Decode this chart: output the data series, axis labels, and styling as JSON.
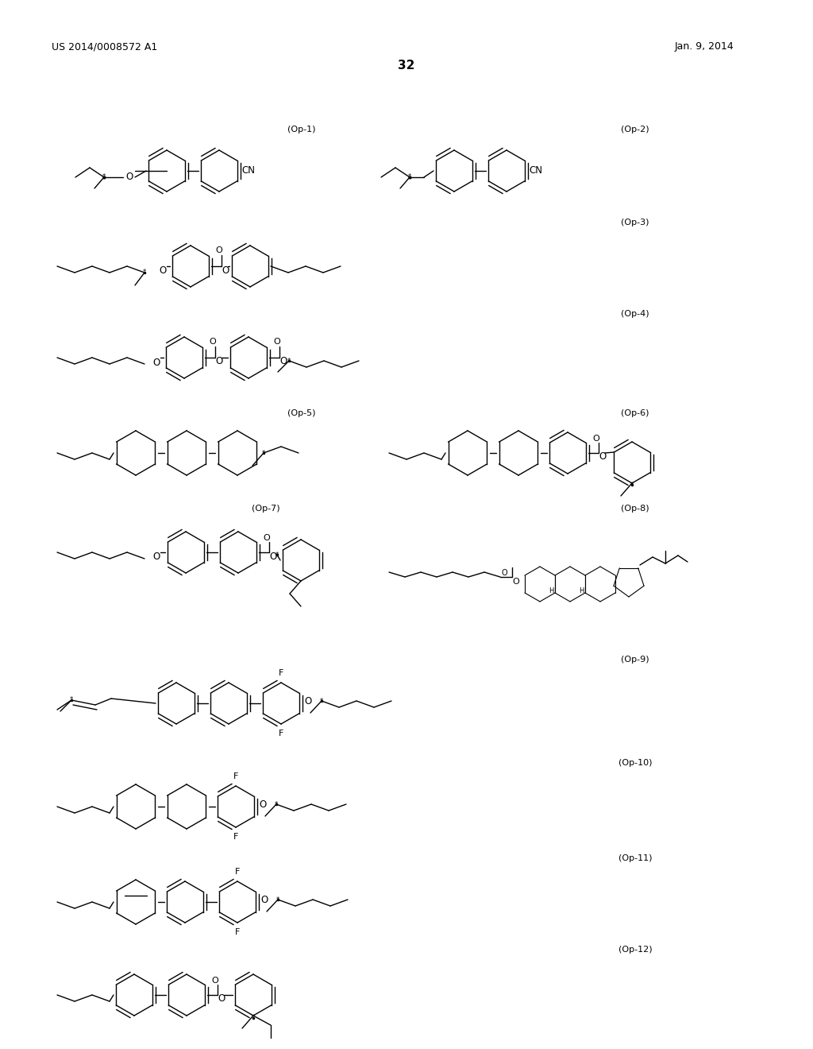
{
  "page_number": "32",
  "patent_number": "US 2014/0008572 A1",
  "patent_date": "Jan. 9, 2014",
  "background_color": "#ffffff",
  "text_color": "#000000",
  "figure_width": 10.24,
  "figure_height": 13.2,
  "dpi": 100
}
